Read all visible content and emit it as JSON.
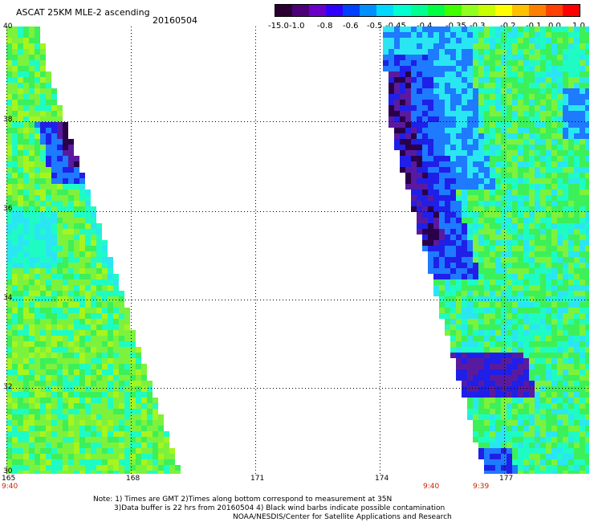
{
  "header": {
    "title": "ASCAT 25KM MLE-2 ascending",
    "date": "20160504"
  },
  "colorbar": {
    "labels": [
      "-15.0",
      "-1.0",
      "-0.8",
      "-0.6",
      "-0.5",
      "-0.45",
      "-0.4",
      "-0.35",
      "-0.3",
      "-0.2",
      "-0.1",
      "0.0",
      "1.0"
    ],
    "colors": [
      "#2a0030",
      "#4b0078",
      "#6a00c8",
      "#3000ff",
      "#0040ff",
      "#0090ff",
      "#00d8ff",
      "#00ffd0",
      "#00ff90",
      "#00ff40",
      "#40ff00",
      "#90ff20",
      "#c8ff00",
      "#ffff00",
      "#ffc000",
      "#ff8000",
      "#ff4000",
      "#ff0000"
    ]
  },
  "map": {
    "lat_labels": [
      "40",
      "38",
      "36",
      "34",
      "32",
      "30"
    ],
    "lon_labels": [
      "165",
      "168",
      "171",
      "174",
      "177"
    ],
    "lat_range": [
      30,
      40
    ],
    "lon_range": [
      165,
      179.2
    ],
    "gridlines": true,
    "pass_times": [
      "9:40",
      "9:40",
      "9:39"
    ],
    "swath_colors": {
      "low": "#2a0048",
      "purple": "#5a1aa0",
      "blue": "#1f1fe8",
      "mid_blue": "#1e7aff",
      "cyan": "#2ae6f2",
      "teal": "#1efcc4",
      "green": "#3cf05a",
      "lime": "#7cf23c",
      "yellowgreen": "#a6f51e"
    }
  },
  "notes": {
    "line1": "Note: 1) Times are GMT 2)Times along bottom correspond to measurement at 35N",
    "line2": "3)Data buffer is 22 hrs from 20160504 4) Black wind barbs indicate possible contamination",
    "line3": "NOAA/NESDIS/Center for Satellite Applications and Research"
  }
}
